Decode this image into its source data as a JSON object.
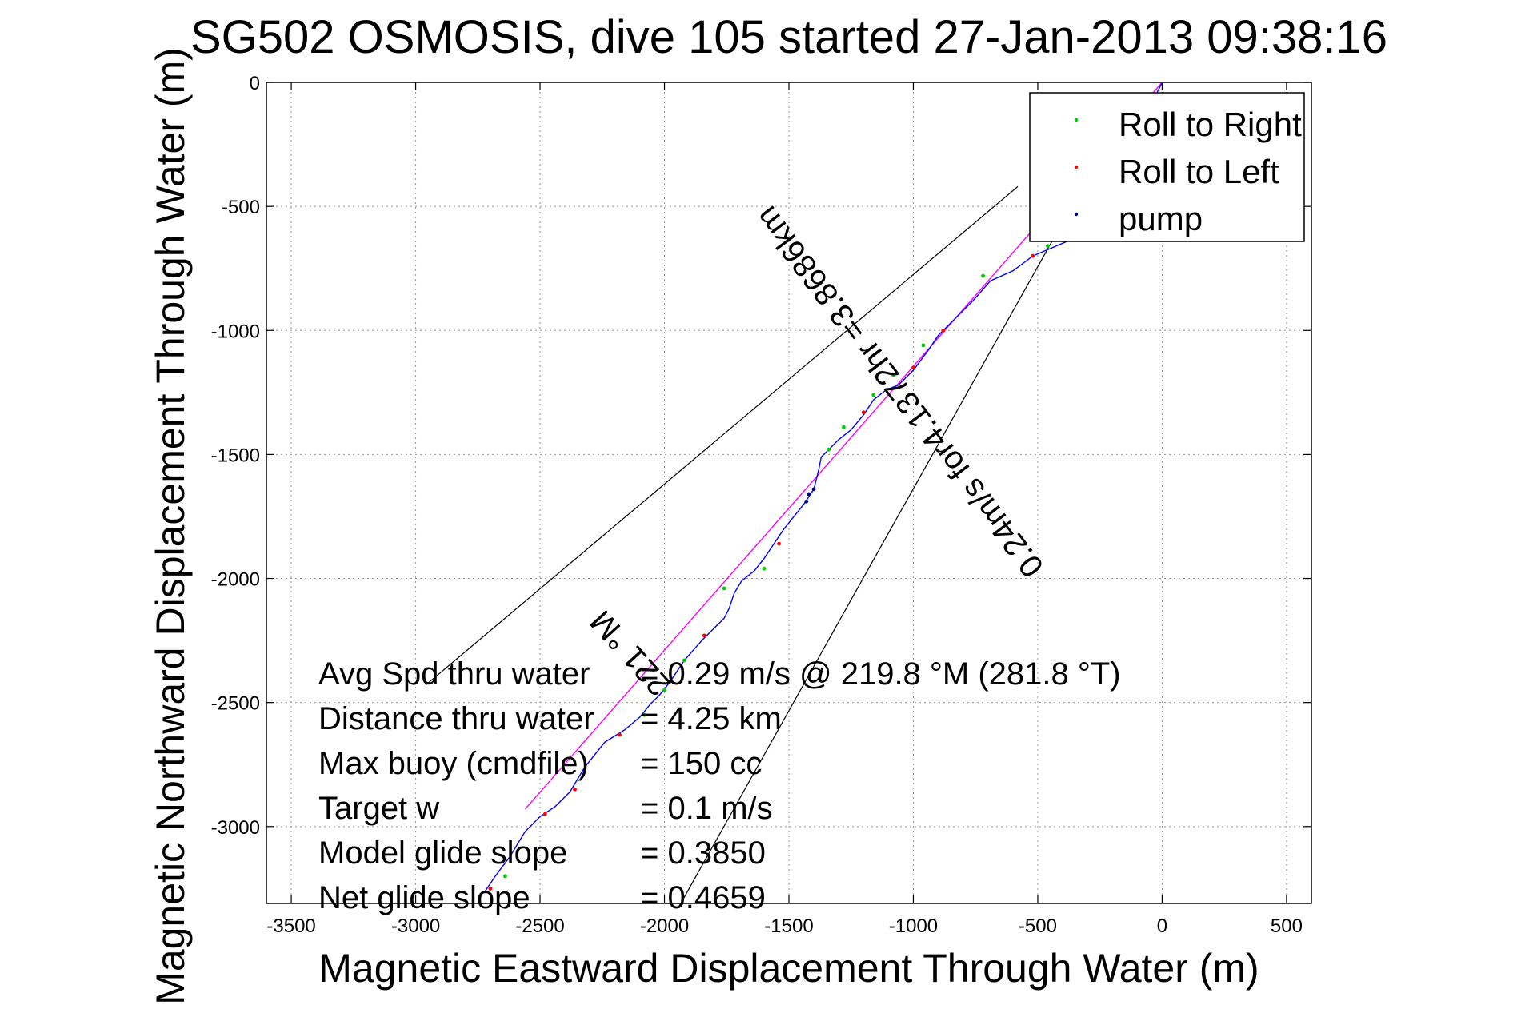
{
  "chart_data": {
    "type": "line",
    "title": "SG502 OSMOSIS, dive 105 started 27-Jan-2013 09:38:16",
    "xlabel": "Magnetic Eastward Displacement Through Water (m)",
    "ylabel": "Magnetic Northward Displacement Through Water (m)",
    "xlim": [
      -3600,
      600
    ],
    "ylim": [
      -3310,
      0
    ],
    "xticks": [
      -3500,
      -3000,
      -2500,
      -2000,
      -1500,
      -1000,
      -500,
      0,
      500
    ],
    "yticks": [
      0,
      -500,
      -1000,
      -1500,
      -2000,
      -2500,
      -3000
    ],
    "grid": true,
    "legend_position": "top-right",
    "legend": [
      {
        "label": "Roll to Right",
        "color": "#00cc00"
      },
      {
        "label": "Roll to Left",
        "color": "#ff0000"
      },
      {
        "label": "pump",
        "color": "#000080"
      }
    ],
    "track": {
      "color": "#0000ff",
      "points": [
        [
          0,
          0
        ],
        [
          -40,
          -80
        ],
        [
          -120,
          -260
        ],
        [
          -230,
          -500
        ],
        [
          -380,
          -640
        ],
        [
          -520,
          -700
        ],
        [
          -600,
          -760
        ],
        [
          -690,
          -800
        ],
        [
          -760,
          -880
        ],
        [
          -860,
          -980
        ],
        [
          -900,
          -1020
        ],
        [
          -940,
          -1080
        ],
        [
          -1000,
          -1160
        ],
        [
          -1060,
          -1220
        ],
        [
          -1110,
          -1240
        ],
        [
          -1160,
          -1280
        ],
        [
          -1200,
          -1340
        ],
        [
          -1250,
          -1400
        ],
        [
          -1300,
          -1440
        ],
        [
          -1340,
          -1480
        ],
        [
          -1370,
          -1510
        ],
        [
          -1380,
          -1560
        ],
        [
          -1400,
          -1640
        ],
        [
          -1440,
          -1700
        ],
        [
          -1520,
          -1800
        ],
        [
          -1560,
          -1860
        ],
        [
          -1600,
          -1920
        ],
        [
          -1640,
          -1970
        ],
        [
          -1690,
          -2010
        ],
        [
          -1720,
          -2060
        ],
        [
          -1740,
          -2120
        ],
        [
          -1760,
          -2160
        ],
        [
          -1800,
          -2200
        ],
        [
          -1850,
          -2250
        ],
        [
          -1920,
          -2330
        ],
        [
          -1980,
          -2420
        ],
        [
          -2020,
          -2470
        ],
        [
          -2060,
          -2510
        ],
        [
          -2100,
          -2560
        ],
        [
          -2160,
          -2610
        ],
        [
          -2240,
          -2660
        ],
        [
          -2320,
          -2760
        ],
        [
          -2380,
          -2860
        ],
        [
          -2440,
          -2920
        ],
        [
          -2500,
          -2960
        ],
        [
          -2560,
          -3020
        ],
        [
          -2620,
          -3120
        ],
        [
          -2680,
          -3200
        ],
        [
          -2720,
          -3260
        ]
      ]
    },
    "heading_line": {
      "color": "#ff00ff",
      "from": [
        0,
        0
      ],
      "to": [
        -2560,
        -2930
      ]
    },
    "cone_lines": [
      {
        "color": "#000000",
        "from": [
          -580,
          -420
        ],
        "to": [
          -2960,
          -2430
        ]
      },
      {
        "color": "#000000",
        "from": [
          -420,
          -600
        ],
        "to": [
          -1940,
          -3320
        ]
      }
    ],
    "roll_right_points": [
      [
        -60,
        -140
      ],
      [
        -180,
        -420
      ],
      [
        -460,
        -660
      ],
      [
        -720,
        -780
      ],
      [
        -960,
        -1060
      ],
      [
        -1080,
        -1180
      ],
      [
        -1160,
        -1260
      ],
      [
        -1280,
        -1390
      ],
      [
        -1340,
        -1480
      ],
      [
        -1600,
        -1960
      ],
      [
        -1760,
        -2040
      ],
      [
        -1920,
        -2330
      ],
      [
        -2000,
        -2450
      ],
      [
        -2080,
        -2550
      ],
      [
        -2640,
        -3200
      ]
    ],
    "roll_left_points": [
      [
        -240,
        -520
      ],
      [
        -520,
        -700
      ],
      [
        -880,
        -1000
      ],
      [
        -1000,
        -1150
      ],
      [
        -1200,
        -1330
      ],
      [
        -1540,
        -1860
      ],
      [
        -1840,
        -2230
      ],
      [
        -2180,
        -2630
      ],
      [
        -2360,
        -2850
      ],
      [
        -2480,
        -2950
      ],
      [
        -2700,
        -3250
      ]
    ],
    "pump_points": [
      [
        -1400,
        -1640
      ],
      [
        -1420,
        -1660
      ],
      [
        -1430,
        -1690
      ]
    ],
    "annotations": {
      "heading": "221 °M",
      "along_track": "0.24m/s for4.1372hr =3.8686km"
    },
    "stats": [
      {
        "label": "Avg Spd thru water",
        "value": "=  0.29 m/s @ 219.8 °M (281.8 °T)"
      },
      {
        "label": "Distance thru water",
        "value": "=  4.25 km"
      },
      {
        "label": "Max buoy (cmdfile)",
        "value": "= 150 cc"
      },
      {
        "label": "Target w",
        "value": "= 0.1 m/s"
      },
      {
        "label": "Model glide slope",
        "value": "= 0.3850"
      },
      {
        "label": "Net glide slope",
        "value": "= 0.4659"
      }
    ]
  }
}
